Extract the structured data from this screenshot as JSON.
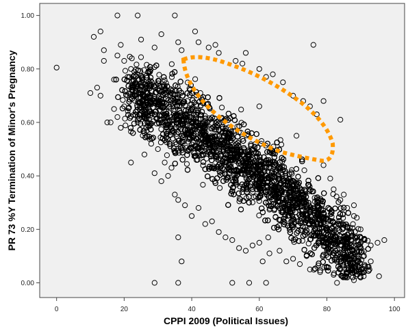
{
  "chart_data": {
    "type": "scatter",
    "xlabel": "CPPI 2009 (Political Issues)",
    "ylabel": "PR 73 %Y Termination of Minor's Pregnancy",
    "xlim": [
      -5,
      103
    ],
    "ylim": [
      -0.055,
      1.045
    ],
    "x_ticks": [
      0,
      20,
      40,
      60,
      80,
      100
    ],
    "x_tick_labels": [
      "0",
      "20",
      "40",
      "60",
      "80",
      "100"
    ],
    "y_ticks": [
      0.0,
      0.2,
      0.4,
      0.6,
      0.8,
      1.0
    ],
    "y_tick_labels": [
      "0.00",
      "0.20",
      "0.40",
      "0.60",
      "0.80",
      "1.00"
    ],
    "grid": false,
    "marker": "open-circle",
    "colors": {
      "marker": "#000000",
      "plot_background": "#f0f0f0",
      "annotation": "#ff9900"
    },
    "dense_band": {
      "description_of_trend": "negative",
      "centerline": [
        [
          22,
          0.72
        ],
        [
          30,
          0.66
        ],
        [
          40,
          0.58
        ],
        [
          50,
          0.5
        ],
        [
          60,
          0.41
        ],
        [
          70,
          0.31
        ],
        [
          80,
          0.19
        ],
        [
          90,
          0.07
        ]
      ]
    },
    "points": [
      [
        0,
        0.805
      ],
      [
        11,
        0.92
      ],
      [
        13,
        0.94
      ],
      [
        14,
        0.87
      ],
      [
        14,
        0.83
      ],
      [
        15,
        0.6
      ],
      [
        16,
        0.6
      ],
      [
        17,
        0.76
      ],
      [
        18,
        1.0
      ],
      [
        18,
        0.85
      ],
      [
        19,
        0.89
      ],
      [
        20,
        0.83
      ],
      [
        21,
        0.77
      ],
      [
        22,
        0.8
      ],
      [
        24,
        1.0
      ],
      [
        25,
        0.91
      ],
      [
        29,
        0.88
      ],
      [
        31,
        0.93
      ],
      [
        35,
        1.0
      ],
      [
        36,
        0.9
      ],
      [
        37,
        0.87
      ],
      [
        41,
        0.94
      ],
      [
        42,
        0.9
      ],
      [
        45,
        0.88
      ],
      [
        47,
        0.89
      ],
      [
        48,
        0.86
      ],
      [
        53,
        0.83
      ],
      [
        55,
        0.82
      ],
      [
        56,
        0.86
      ],
      [
        60,
        0.8
      ],
      [
        62,
        0.77
      ],
      [
        64,
        0.78
      ],
      [
        67,
        0.75
      ],
      [
        70,
        0.7
      ],
      [
        73,
        0.68
      ],
      [
        75,
        0.66
      ],
      [
        77,
        0.63
      ],
      [
        76,
        0.89
      ],
      [
        79,
        0.68
      ],
      [
        84,
        0.61
      ],
      [
        22,
        0.45
      ],
      [
        26,
        0.48
      ],
      [
        29,
        0.41
      ],
      [
        31,
        0.38
      ],
      [
        33,
        0.4
      ],
      [
        35,
        0.33
      ],
      [
        36,
        0.31
      ],
      [
        38,
        0.29
      ],
      [
        36,
        0.17
      ],
      [
        37,
        0.08
      ],
      [
        29,
        0.0
      ],
      [
        36,
        0.0
      ],
      [
        52,
        0.0
      ],
      [
        57,
        0.0
      ],
      [
        62,
        0.0
      ],
      [
        83,
        0.0
      ],
      [
        54,
        0.13
      ],
      [
        60,
        0.15
      ],
      [
        63,
        0.11
      ],
      [
        66,
        0.12
      ],
      [
        61,
        0.08
      ],
      [
        70,
        0.09
      ],
      [
        75,
        0.05
      ],
      [
        86,
        0.02
      ],
      [
        88,
        0.01
      ],
      [
        90,
        0.02
      ],
      [
        91,
        0.04
      ],
      [
        92,
        0.06
      ],
      [
        93,
        0.14
      ],
      [
        97,
        0.16
      ],
      [
        95,
        0.15
      ],
      [
        90,
        0.2
      ],
      [
        88,
        0.25
      ],
      [
        86,
        0.28
      ],
      [
        84,
        0.31
      ],
      [
        82,
        0.35
      ],
      [
        81,
        0.39
      ],
      [
        79,
        0.44
      ],
      [
        71,
        0.55
      ],
      [
        60,
        0.66
      ],
      [
        10,
        0.71
      ],
      [
        12,
        0.73
      ],
      [
        13,
        0.7
      ],
      [
        17,
        0.65
      ],
      [
        18,
        0.62
      ],
      [
        19,
        0.58
      ],
      [
        20,
        0.66
      ],
      [
        21,
        0.7
      ],
      [
        23,
        0.74
      ],
      [
        23,
        0.79
      ],
      [
        24,
        0.6
      ],
      [
        26,
        0.56
      ],
      [
        28,
        0.52
      ],
      [
        30,
        0.5
      ],
      [
        44,
        0.22
      ],
      [
        46,
        0.23
      ],
      [
        48,
        0.19
      ],
      [
        50,
        0.17
      ],
      [
        52,
        0.16
      ],
      [
        40,
        0.25
      ],
      [
        42,
        0.28
      ],
      [
        32,
        0.45
      ],
      [
        34,
        0.43
      ],
      [
        56,
        0.12
      ],
      [
        58,
        0.14
      ],
      [
        68,
        0.08
      ],
      [
        72,
        0.07
      ],
      [
        74,
        0.1
      ],
      [
        78,
        0.04
      ],
      [
        80,
        0.06
      ],
      [
        82,
        0.03
      ],
      [
        84,
        0.05
      ],
      [
        87,
        0.09
      ],
      [
        89,
        0.12
      ],
      [
        91,
        0.1
      ],
      [
        93,
        0.08
      ],
      [
        86,
        0.18
      ],
      [
        84,
        0.22
      ],
      [
        88,
        0.29
      ],
      [
        85,
        0.33
      ]
    ]
  }
}
